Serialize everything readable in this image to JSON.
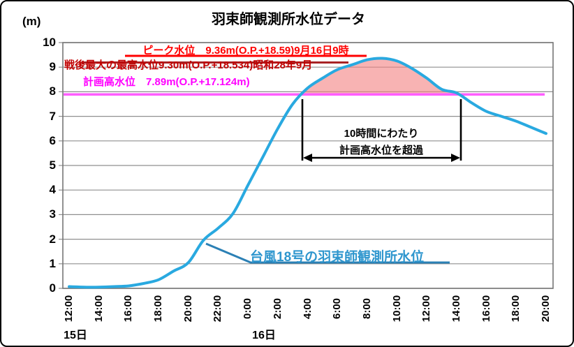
{
  "window": {
    "background": "#ffffff",
    "frame_border_color": "#000000"
  },
  "chart": {
    "title": "羽束師観測所水位データ",
    "y_unit_label": "(m)",
    "annotations": {
      "peak": {
        "text": "ピーク水位　9.36m(O.P.+18.59)9月16日9時",
        "value_m": 9.36,
        "color": "#ff0000"
      },
      "postwar_max": {
        "text": "戦後最大の最高水位9.30m(O.P.+18.534)昭和28年9月",
        "value_m": 9.3,
        "color": "#c00000",
        "line_color": "#a82325"
      },
      "design_high_water": {
        "text": "計画高水位　7.89m(O.P.+17.124m)",
        "value_m": 7.89,
        "color": "#ff00ff",
        "line_color": "#ff5cff"
      },
      "exceedance": {
        "line1": "10時間にわたり",
        "line2": "計画高水位を超過",
        "duration_hours": 10
      },
      "series_label": {
        "text": "台風18号の羽束師観測所水位",
        "color": "#2e96ce",
        "leader_color": "#2b80b5"
      }
    }
  },
  "chart_data": {
    "type": "line",
    "title": "羽束師観測所水位データ",
    "xlabel": "",
    "ylabel": "(m)",
    "ylim": [
      0,
      10
    ],
    "y_ticks": [
      "0",
      "1",
      "2",
      "3",
      "4",
      "5",
      "6",
      "7",
      "8",
      "9",
      "10"
    ],
    "grid": "horizontal",
    "legend_position": "none",
    "x_start": "9月15日 12:00",
    "x_interval_hours": 1,
    "x_tick_every_hours": 2,
    "x_tick_labels": [
      "12:00",
      "14:00",
      "16:00",
      "18:00",
      "20:00",
      "22:00",
      "0:00",
      "2:00",
      "4:00",
      "6:00",
      "8:00",
      "10:00",
      "12:00",
      "14:00",
      "16:00",
      "18:00",
      "20:00"
    ],
    "day_labels": [
      {
        "label": "15日",
        "tick_index": 0
      },
      {
        "label": "16日",
        "tick_index": 6
      }
    ],
    "series": [
      {
        "name": "台風18号の羽束師観測所水位",
        "color": "#29a9e0",
        "hours_from_start": [
          0,
          1,
          2,
          3,
          4,
          5,
          6,
          7,
          8,
          9,
          10,
          11,
          12,
          13,
          14,
          15,
          16,
          17,
          18,
          19,
          20,
          21,
          22,
          23,
          24,
          25,
          26,
          27,
          28,
          29,
          30,
          31,
          32
        ],
        "values": [
          0.07,
          0.05,
          0.05,
          0.07,
          0.1,
          0.2,
          0.35,
          0.7,
          1.05,
          1.95,
          2.45,
          3.05,
          4.2,
          5.35,
          6.5,
          7.5,
          8.15,
          8.55,
          8.9,
          9.1,
          9.3,
          9.36,
          9.25,
          8.95,
          8.55,
          8.1,
          7.95,
          7.55,
          7.2,
          7.0,
          6.8,
          6.55,
          6.3
        ]
      }
    ],
    "reference_lines": [
      {
        "label": "計画高水位",
        "value": 7.89,
        "color": "#ff5cff"
      },
      {
        "label": "戦後最大の最高水位",
        "value": 9.3,
        "color": "#a82325"
      }
    ],
    "peak_point": {
      "value": 9.36,
      "time": "9月16日9時"
    },
    "shaded_exceedance": {
      "above_value": 7.89,
      "fill": "rgba(244,128,128,0.6)",
      "duration_hours": 10
    }
  }
}
